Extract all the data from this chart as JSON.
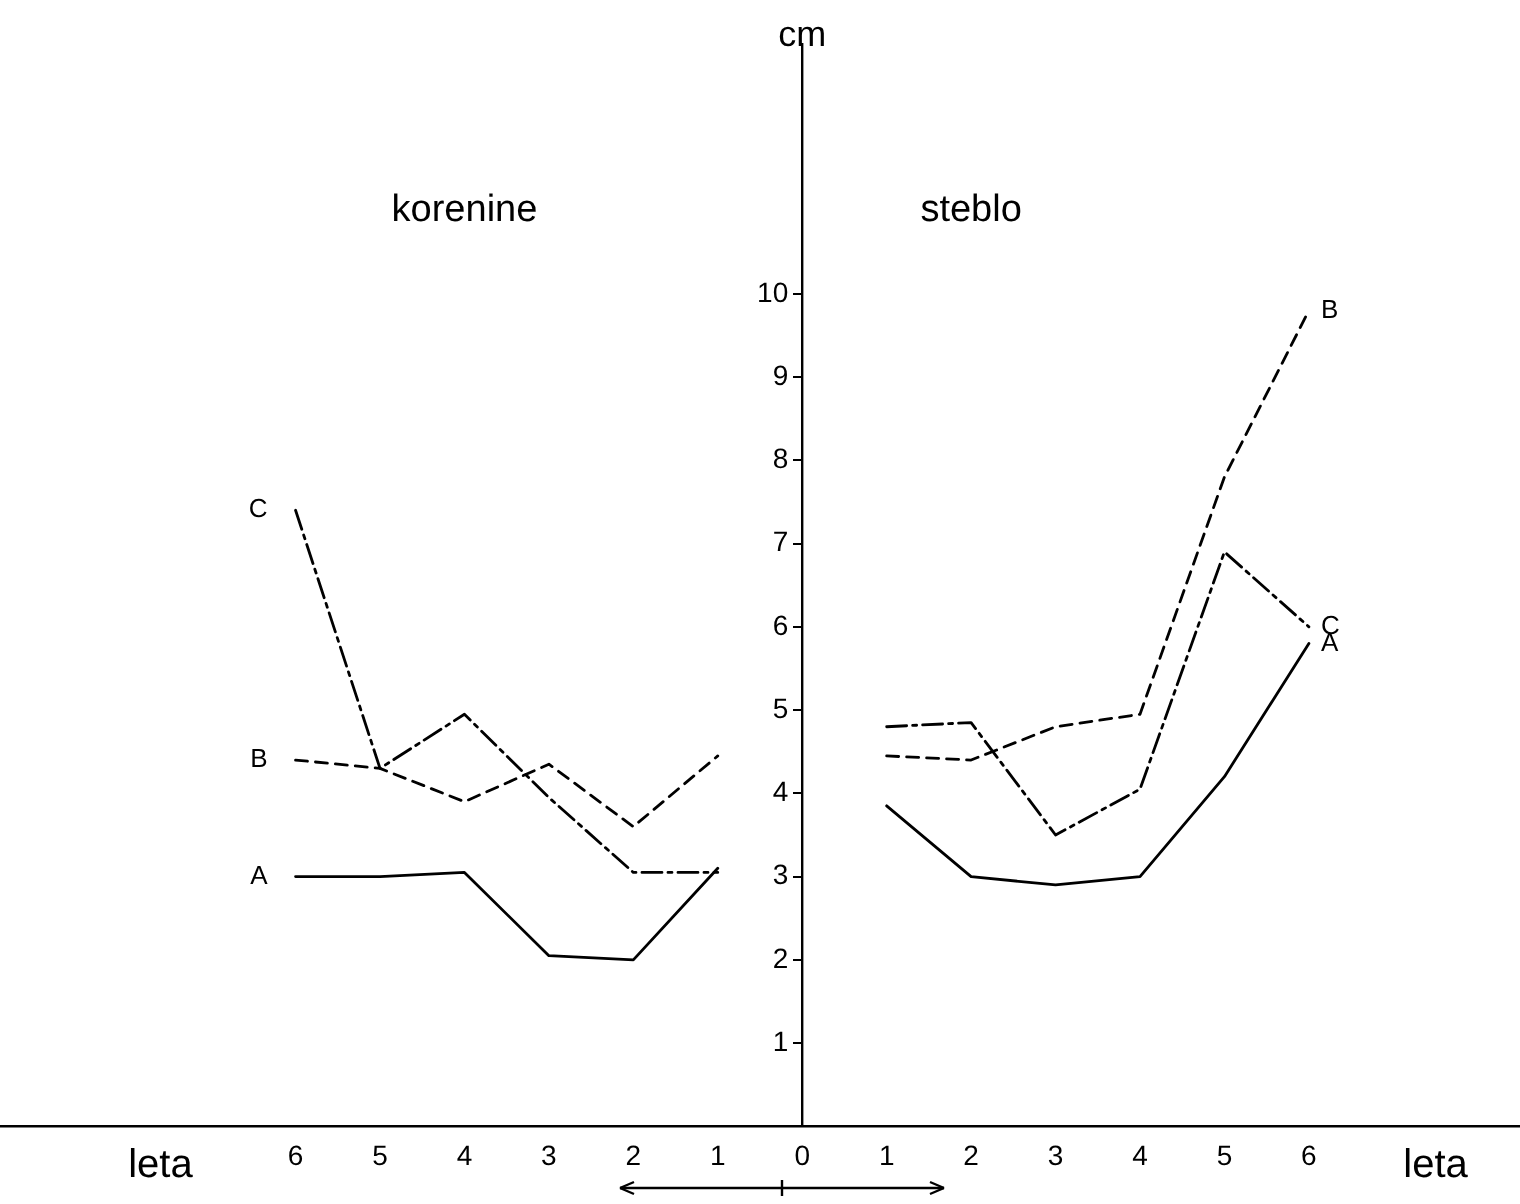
{
  "chart_data": {
    "type": "line",
    "xlabel": "leta",
    "ylabel": "cm",
    "annotations": [
      "korenine",
      "steblo"
    ],
    "xlim": [
      -9.5,
      8.5
    ],
    "ylim": [
      0,
      13
    ],
    "xticks": [
      {
        "value": -6,
        "label": "6"
      },
      {
        "value": -5,
        "label": "5"
      },
      {
        "value": -4,
        "label": "4"
      },
      {
        "value": -3,
        "label": "3"
      },
      {
        "value": -2,
        "label": "2"
      },
      {
        "value": -1,
        "label": "1"
      },
      0,
      1,
      2,
      3,
      4,
      5,
      6
    ],
    "yticks": [
      {
        "value": 0,
        "label": null
      },
      1,
      2,
      3,
      4,
      5,
      6,
      7,
      8,
      9,
      10
    ],
    "grid": false,
    "legend": false,
    "marker": "none",
    "series": [
      {
        "name": "A",
        "color": "#000000",
        "line_style": "solid",
        "x": [
          -6,
          -5,
          -4,
          -3,
          -2,
          -1
        ],
        "values": [
          3.0,
          3.0,
          3.05,
          2.05,
          2.0,
          3.1
        ]
      },
      {
        "name": "B",
        "color": "#000000",
        "line_style": "dashed",
        "x": [
          -6,
          -5,
          -4,
          -3,
          -2,
          -1
        ],
        "values": [
          4.4,
          4.3,
          3.9,
          4.35,
          3.6,
          4.45
        ]
      },
      {
        "name": "C",
        "color": "#000000",
        "line_style": "dashdot",
        "x": [
          -6,
          -5,
          -4,
          -3,
          -2,
          -1
        ],
        "values": [
          7.4,
          4.3,
          4.95,
          3.95,
          3.05,
          3.05
        ]
      },
      {
        "name": "A",
        "color": "#000000",
        "line_style": "solid",
        "x": [
          1,
          2,
          3,
          4,
          5,
          6
        ],
        "values": [
          3.85,
          3.0,
          2.9,
          3.0,
          4.2,
          5.8
        ]
      },
      {
        "name": "B",
        "color": "#000000",
        "line_style": "dashed",
        "x": [
          1,
          2,
          3,
          4,
          5,
          6
        ],
        "values": [
          4.45,
          4.4,
          4.8,
          4.95,
          7.8,
          9.8
        ]
      },
      {
        "name": "C",
        "color": "#000000",
        "line_style": "dashdot",
        "x": [
          1,
          2,
          3,
          4,
          5,
          6
        ],
        "values": [
          4.8,
          4.85,
          3.5,
          4.05,
          6.9,
          6.0
        ]
      }
    ]
  }
}
